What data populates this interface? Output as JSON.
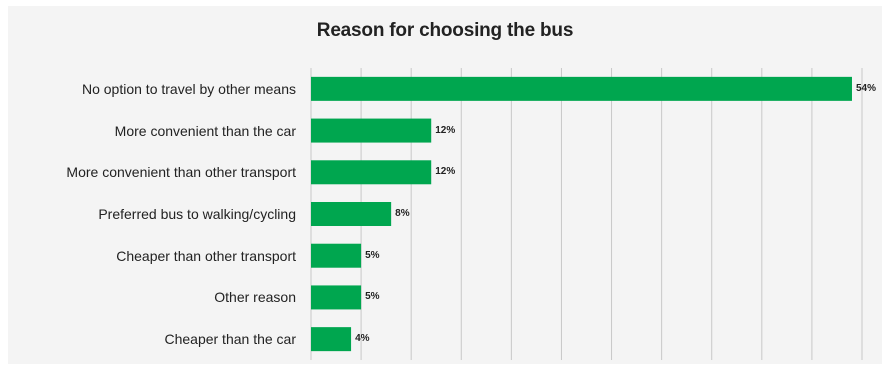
{
  "chart_data": {
    "type": "bar",
    "orientation": "horizontal",
    "title": "Reason for choosing the bus",
    "categories": [
      "No option to travel by other means",
      "More convenient than the car",
      "More convenient than other transport",
      "Preferred bus to walking/cycling",
      "Cheaper than other transport",
      "Other reason",
      "Cheaper than the car"
    ],
    "values": [
      54,
      12,
      12,
      8,
      5,
      5,
      4
    ],
    "value_labels": [
      "54%",
      "12%",
      "12%",
      "8%",
      "5%",
      "5%",
      "4%"
    ],
    "unit": "%",
    "xlim": [
      0,
      55
    ],
    "grid": true,
    "legend": "none",
    "bar_color": "#00a64f"
  }
}
